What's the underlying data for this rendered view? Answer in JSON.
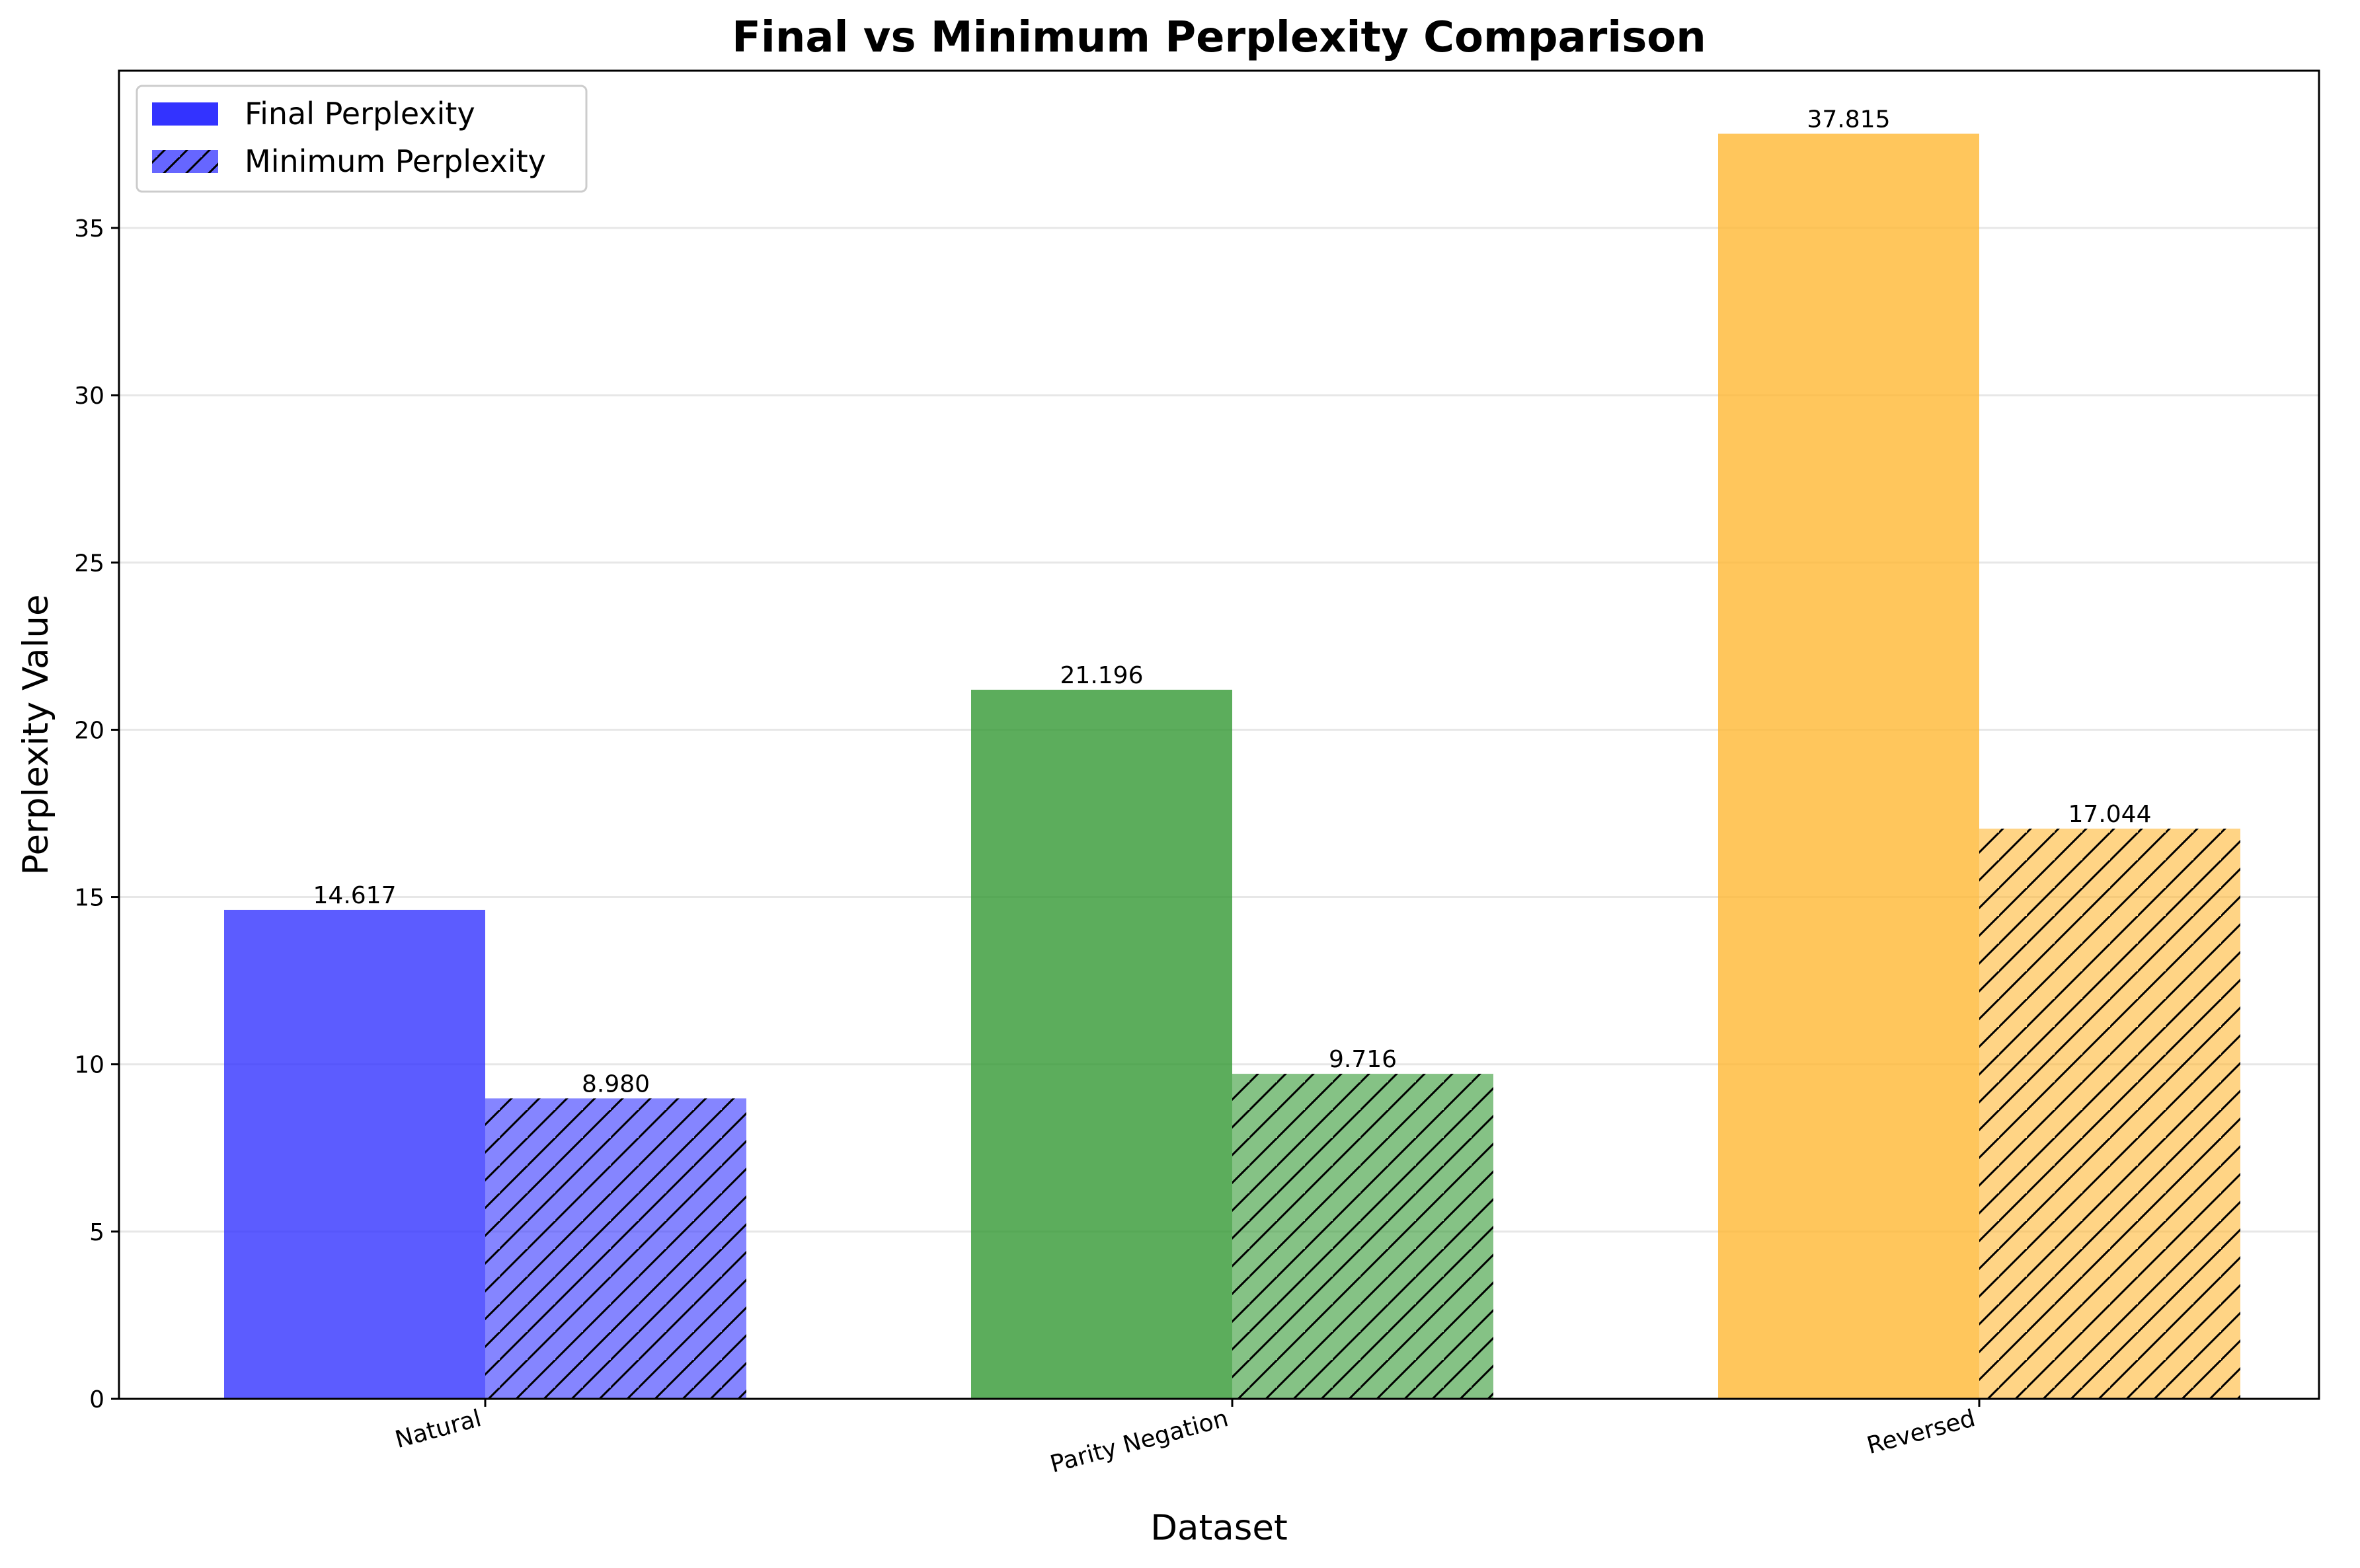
{
  "chart_data": {
    "type": "bar",
    "title": "Final vs Minimum Perplexity Comparison",
    "xlabel": "Dataset",
    "ylabel": "Perplexity Value",
    "categories": [
      "Natural",
      "Parity Negation",
      "Reversed"
    ],
    "category_colors": [
      "#3333ff",
      "#339933",
      "#ffb833"
    ],
    "series": [
      {
        "name": "Final Perplexity",
        "values": [
          14.617,
          21.196,
          37.815
        ],
        "value_labels": [
          "14.617",
          "21.196",
          "37.815"
        ],
        "hatch": "none",
        "alpha": 0.8
      },
      {
        "name": "Minimum Perplexity",
        "values": [
          8.98,
          9.716,
          17.044
        ],
        "value_labels": [
          "8.980",
          "9.716",
          "17.044"
        ],
        "hatch": "diagonal",
        "alpha": 0.6
      }
    ],
    "ylim": [
      0,
      39.7
    ],
    "yticks": [
      0,
      5,
      10,
      15,
      20,
      25,
      30,
      35
    ],
    "ytick_labels": [
      "0",
      "5",
      "10",
      "15",
      "20",
      "25",
      "30",
      "35"
    ],
    "grid": "y",
    "legend_position": "top-left",
    "legend_swatch_color": "#0000ff"
  }
}
